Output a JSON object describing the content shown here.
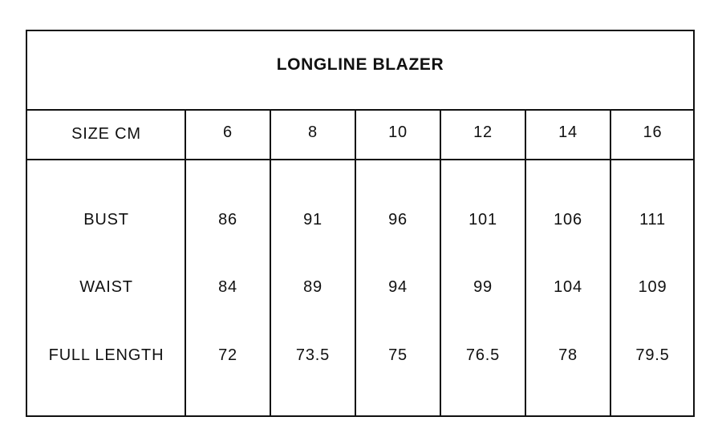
{
  "title": "LONGLINE BLAZER",
  "header": {
    "label": "SIZE CM",
    "sizes": [
      "6",
      "8",
      "10",
      "12",
      "14",
      "16"
    ]
  },
  "rows": [
    {
      "label": "BUST",
      "values": [
        "86",
        "91",
        "96",
        "101",
        "106",
        "111"
      ]
    },
    {
      "label": "WAIST",
      "values": [
        "84",
        "89",
        "94",
        "99",
        "104",
        "109"
      ]
    },
    {
      "label": "FULL LENGTH",
      "values": [
        "72",
        "73.5",
        "75",
        "76.5",
        "78",
        "79.5"
      ]
    }
  ]
}
